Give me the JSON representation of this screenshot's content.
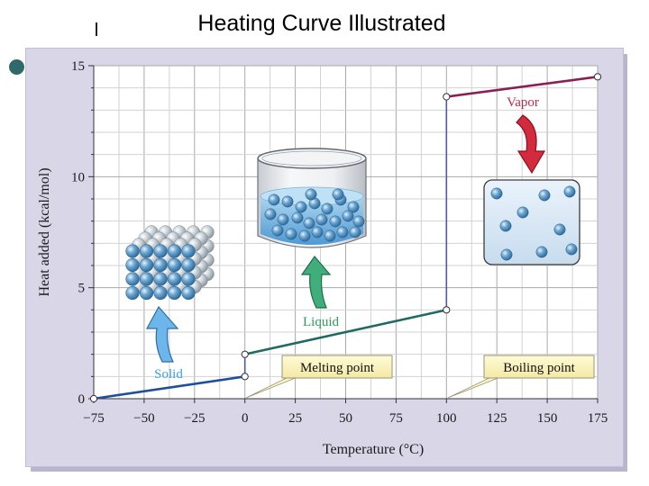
{
  "slide": {
    "title": "Heating Curve Illustrated"
  },
  "chart_data": {
    "type": "line",
    "title": "Heating Curve Illustrated",
    "xlabel": "Temperature (°C)",
    "ylabel": "Heat added (kcal/mol)",
    "xlim": [
      -75,
      175
    ],
    "ylim": [
      0,
      15
    ],
    "x_ticks": [
      -75,
      -50,
      -25,
      0,
      25,
      50,
      75,
      100,
      125,
      150,
      175
    ],
    "y_ticks": [
      0,
      5,
      10,
      15
    ],
    "grid": true,
    "series": [
      {
        "color": "#1f4e9a",
        "points": [
          [
            -75,
            0
          ],
          [
            0,
            1
          ],
          [
            0,
            2
          ],
          [
            100,
            4
          ],
          [
            100,
            13.6
          ],
          [
            175,
            14.5
          ]
        ]
      }
    ],
    "segment_colors": [
      "#1f4e9a",
      "#4a59b5",
      "#1f6a63",
      "#4a59b5",
      "#8b1f55"
    ],
    "markers": [
      [
        -75,
        0
      ],
      [
        0,
        1
      ],
      [
        0,
        2
      ],
      [
        100,
        4
      ],
      [
        100,
        13.6
      ],
      [
        175,
        14.5
      ]
    ],
    "annotations": [
      {
        "text": "Melting point",
        "x": 0,
        "y": 0
      },
      {
        "text": "Boiling point",
        "x": 100,
        "y": 0
      }
    ],
    "phase_labels": [
      {
        "text": "Solid",
        "color": "#3aa3d8",
        "icon": "solid-lattice-icon"
      },
      {
        "text": "Liquid",
        "color": "#2e9a5c",
        "icon": "liquid-beaker-icon"
      },
      {
        "text": "Vapor",
        "color": "#c0284a",
        "icon": "vapor-box-icon"
      }
    ]
  }
}
